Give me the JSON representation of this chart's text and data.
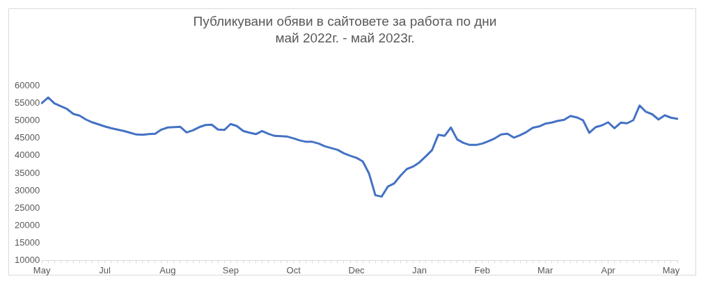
{
  "chart_data": {
    "type": "line",
    "title": "Публикувани обяви в сайтовете за работа по дни",
    "subtitle": "май 2022г. - май 2023г.",
    "categories": [
      "May",
      null,
      null,
      null,
      null,
      null,
      null,
      null,
      null,
      null,
      "Jul",
      null,
      null,
      null,
      null,
      null,
      null,
      null,
      null,
      null,
      "Aug",
      null,
      null,
      null,
      null,
      null,
      null,
      null,
      null,
      null,
      "Sep",
      null,
      null,
      null,
      null,
      null,
      null,
      null,
      null,
      null,
      "Oct",
      null,
      null,
      null,
      null,
      null,
      null,
      null,
      null,
      null,
      "Dec",
      null,
      null,
      null,
      null,
      null,
      null,
      null,
      null,
      null,
      "Jan",
      null,
      null,
      null,
      null,
      null,
      null,
      null,
      null,
      null,
      "Feb",
      null,
      null,
      null,
      null,
      null,
      null,
      null,
      null,
      null,
      "Mar",
      null,
      null,
      null,
      null,
      null,
      null,
      null,
      null,
      null,
      "Apr",
      null,
      null,
      null,
      null,
      null,
      null,
      null,
      null,
      null,
      "May",
      null
    ],
    "series": [
      {
        "color": "#4472c4",
        "values": [
          55100,
          56700,
          55000,
          54200,
          53400,
          52000,
          51500,
          50400,
          49600,
          49000,
          48400,
          47900,
          47500,
          47100,
          46600,
          46100,
          46000,
          46200,
          46300,
          47500,
          48100,
          48200,
          48300,
          46700,
          47300,
          48200,
          48800,
          48900,
          47500,
          47400,
          49100,
          48500,
          47100,
          46600,
          46200,
          47100,
          46300,
          45700,
          45600,
          45500,
          45000,
          44400,
          44000,
          44000,
          43500,
          42700,
          42200,
          41700,
          40700,
          40000,
          39400,
          38400,
          34900,
          28700,
          28300,
          31200,
          32100,
          34300,
          36200,
          36900,
          38100,
          39800,
          41600,
          46000,
          45700,
          48100,
          44700,
          43700,
          43100,
          43100,
          43500,
          44200,
          45000,
          46100,
          46300,
          45200,
          45900,
          46800,
          48000,
          48400,
          49200,
          49500,
          50000,
          50300,
          51400,
          51000,
          50200,
          46600,
          48200,
          48700,
          49600,
          47900,
          49500,
          49300,
          50200,
          54400,
          52600,
          51900,
          50400,
          51600,
          50900,
          50600
        ]
      }
    ],
    "ylim": [
      10000,
      60000
    ],
    "yticks": [
      10000,
      15000,
      20000,
      25000,
      30000,
      35000,
      40000,
      45000,
      50000,
      55000,
      60000
    ],
    "grid": false,
    "legend": false,
    "marker": "none",
    "line_style": "solid"
  }
}
